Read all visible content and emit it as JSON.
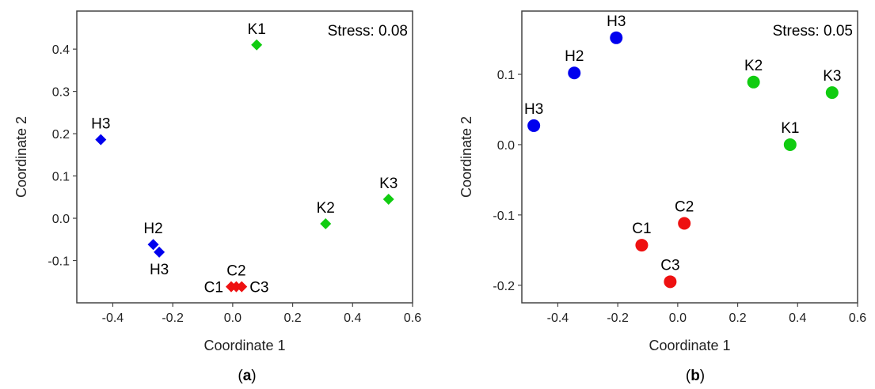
{
  "colors": {
    "H": "#0000ee",
    "K": "#11cc11",
    "C": "#ee1111"
  },
  "chart_data": [
    {
      "type": "scatter",
      "panel_label": "a",
      "marker": "diamond",
      "stress": "Stress: 0.08",
      "xlabel": "Coordinate 1",
      "ylabel": "Coordinate 2",
      "xlim": [
        -0.52,
        0.6
      ],
      "ylim": [
        -0.2,
        0.49
      ],
      "xticks": [
        -0.4,
        -0.2,
        0.0,
        0.2,
        0.4,
        0.6
      ],
      "xtick_labels": [
        "-0.4",
        "-0.2",
        "0.0",
        "0.2",
        "0.4",
        "0.6"
      ],
      "yticks": [
        -0.1,
        0.0,
        0.1,
        0.2,
        0.3,
        0.4
      ],
      "ytick_labels": [
        "-0.1",
        "0.0",
        "0.1",
        "0.2",
        "0.3",
        "0.4"
      ],
      "points": [
        {
          "label": "K1",
          "group": "K",
          "x": 0.08,
          "y": 0.41,
          "lpos": "above"
        },
        {
          "label": "H3",
          "group": "H",
          "x": -0.44,
          "y": 0.186,
          "lpos": "above"
        },
        {
          "label": "K3",
          "group": "K",
          "x": 0.52,
          "y": 0.045,
          "lpos": "above"
        },
        {
          "label": "K2",
          "group": "K",
          "x": 0.31,
          "y": -0.013,
          "lpos": "above"
        },
        {
          "label": "H2",
          "group": "H",
          "x": -0.265,
          "y": -0.062,
          "lpos": "above"
        },
        {
          "label": "H3",
          "group": "H",
          "x": -0.245,
          "y": -0.08,
          "lpos": "below"
        },
        {
          "label": "C1",
          "group": "C",
          "x": -0.005,
          "y": -0.162,
          "lpos": "left"
        },
        {
          "label": "C2",
          "group": "C",
          "x": 0.012,
          "y": -0.162,
          "lpos": "above"
        },
        {
          "label": "C3",
          "group": "C",
          "x": 0.03,
          "y": -0.162,
          "lpos": "right"
        }
      ]
    },
    {
      "type": "scatter",
      "panel_label": "b",
      "marker": "circle",
      "stress": "Stress: 0.05",
      "xlabel": "Coordinate 1",
      "ylabel": "Coordinate 2",
      "xlim": [
        -0.52,
        0.6
      ],
      "ylim": [
        -0.225,
        0.19
      ],
      "xticks": [
        -0.4,
        -0.2,
        0.0,
        0.2,
        0.4,
        0.6
      ],
      "xtick_labels": [
        "-0.4",
        "-0.2",
        "0.0",
        "0.2",
        "0.4",
        "0.6"
      ],
      "yticks": [
        -0.2,
        -0.1,
        0.0,
        0.1
      ],
      "ytick_labels": [
        "-0.2",
        "-0.1",
        "0.0",
        "0.1"
      ],
      "points": [
        {
          "label": "H3",
          "group": "H",
          "x": -0.205,
          "y": 0.152,
          "lpos": "above"
        },
        {
          "label": "H2",
          "group": "H",
          "x": -0.345,
          "y": 0.102,
          "lpos": "above"
        },
        {
          "label": "H3",
          "group": "H",
          "x": -0.48,
          "y": 0.027,
          "lpos": "above"
        },
        {
          "label": "K2",
          "group": "K",
          "x": 0.253,
          "y": 0.089,
          "lpos": "above"
        },
        {
          "label": "K3",
          "group": "K",
          "x": 0.515,
          "y": 0.074,
          "lpos": "above"
        },
        {
          "label": "K1",
          "group": "K",
          "x": 0.375,
          "y": 0.0,
          "lpos": "above"
        },
        {
          "label": "C2",
          "group": "C",
          "x": 0.022,
          "y": -0.112,
          "lpos": "above"
        },
        {
          "label": "C1",
          "group": "C",
          "x": -0.12,
          "y": -0.143,
          "lpos": "above"
        },
        {
          "label": "C3",
          "group": "C",
          "x": -0.025,
          "y": -0.195,
          "lpos": "above"
        }
      ]
    }
  ]
}
